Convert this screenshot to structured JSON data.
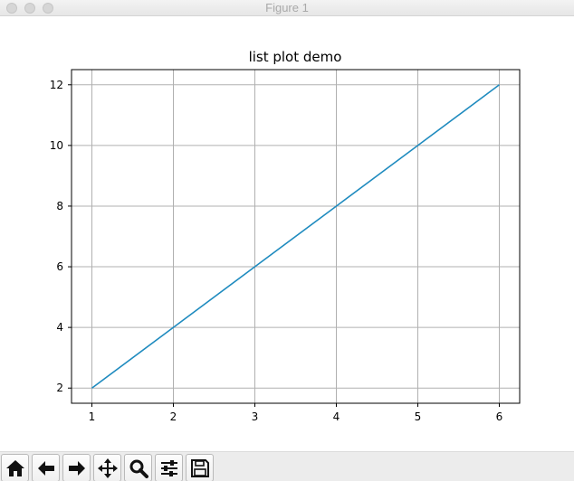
{
  "window": {
    "title": "Figure 1"
  },
  "chart_data": {
    "type": "line",
    "title": "list plot demo",
    "xlabel": "",
    "ylabel": "",
    "x": [
      1,
      2,
      3,
      4,
      5,
      6
    ],
    "series": [
      {
        "values": [
          2,
          4,
          6,
          8,
          10,
          12
        ],
        "color": "#1f8bbf"
      }
    ],
    "xlim": [
      0.75,
      6.25
    ],
    "ylim": [
      1.5,
      12.5
    ],
    "xticks": [
      1,
      2,
      3,
      4,
      5,
      6
    ],
    "yticks": [
      2,
      4,
      6,
      8,
      10,
      12
    ],
    "grid": true
  },
  "toolbar": {
    "buttons": [
      {
        "name": "home-button",
        "icon": "home-icon"
      },
      {
        "name": "back-button",
        "icon": "arrow-left-icon"
      },
      {
        "name": "forward-button",
        "icon": "arrow-right-icon"
      },
      {
        "name": "pan-button",
        "icon": "move-icon"
      },
      {
        "name": "zoom-button",
        "icon": "magnifier-icon"
      },
      {
        "name": "configure-subplots-button",
        "icon": "sliders-icon"
      },
      {
        "name": "save-button",
        "icon": "floppy-disk-icon"
      }
    ]
  },
  "colors": {
    "line": "#1f8bbf",
    "grid": "#b0b0b0",
    "toolbar_bg": "#ececec"
  }
}
